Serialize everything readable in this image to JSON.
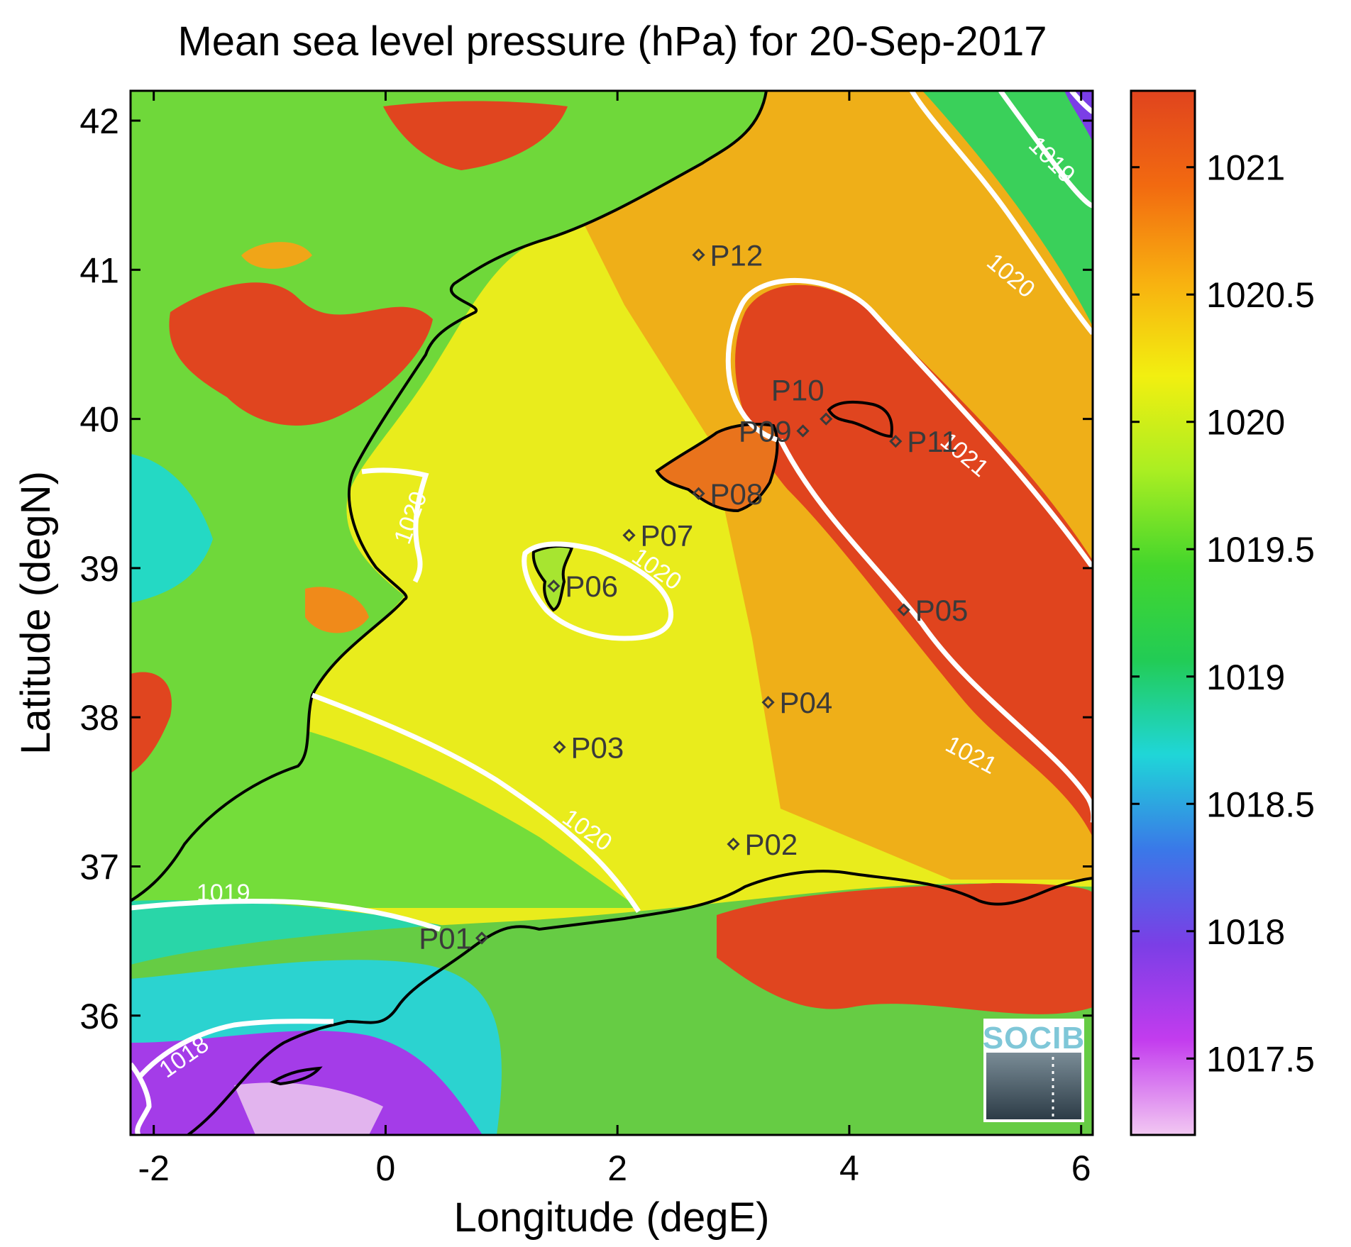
{
  "title": "Mean sea level pressure (hPa) for 20-Sep-2017",
  "x_axis": {
    "label": "Longitude (degE)",
    "range": [
      -2.2,
      6.1
    ],
    "ticks": [
      {
        "v": -2,
        "t": "-2"
      },
      {
        "v": 0,
        "t": "0"
      },
      {
        "v": 2,
        "t": "2"
      },
      {
        "v": 4,
        "t": "4"
      },
      {
        "v": 6,
        "t": "6"
      }
    ]
  },
  "y_axis": {
    "label": "Latitude (degN)",
    "range": [
      35.2,
      42.2
    ],
    "ticks": [
      {
        "v": 36,
        "t": "36"
      },
      {
        "v": 37,
        "t": "37"
      },
      {
        "v": 38,
        "t": "38"
      },
      {
        "v": 39,
        "t": "39"
      },
      {
        "v": 40,
        "t": "40"
      },
      {
        "v": 41,
        "t": "41"
      },
      {
        "v": 42,
        "t": "42"
      }
    ]
  },
  "colorbar": {
    "range": [
      1017.2,
      1021.3
    ],
    "ticks": [
      {
        "v": 1017.5,
        "t": "1017.5"
      },
      {
        "v": 1018,
        "t": "1018"
      },
      {
        "v": 1018.5,
        "t": "1018.5"
      },
      {
        "v": 1019,
        "t": "1019"
      },
      {
        "v": 1019.5,
        "t": "1019.5"
      },
      {
        "v": 1020,
        "t": "1020"
      },
      {
        "v": 1020.5,
        "t": "1020.5"
      },
      {
        "v": 1021,
        "t": "1021"
      }
    ],
    "colors": [
      "#f2c8f2",
      "#c33cee",
      "#7b3ee6",
      "#3a78e8",
      "#1fd6d8",
      "#22cc55",
      "#44d62c",
      "#aaee22",
      "#f2ef10",
      "#f8b010",
      "#f26a10",
      "#e0441e"
    ]
  },
  "stations": [
    {
      "name": "P01",
      "lon": 0.83,
      "lat": 36.52
    },
    {
      "name": "P02",
      "lon": 3.0,
      "lat": 37.15
    },
    {
      "name": "P03",
      "lon": 1.5,
      "lat": 37.8
    },
    {
      "name": "P04",
      "lon": 3.3,
      "lat": 38.1
    },
    {
      "name": "P05",
      "lon": 4.47,
      "lat": 38.72
    },
    {
      "name": "P06",
      "lon": 1.45,
      "lat": 38.88
    },
    {
      "name": "P07",
      "lon": 2.1,
      "lat": 39.22
    },
    {
      "name": "P08",
      "lon": 2.7,
      "lat": 39.5
    },
    {
      "name": "P09",
      "lon": 3.6,
      "lat": 39.92
    },
    {
      "name": "P10",
      "lon": 3.8,
      "lat": 40.0
    },
    {
      "name": "P11",
      "lon": 4.4,
      "lat": 39.85
    },
    {
      "name": "P12",
      "lon": 2.7,
      "lat": 41.1
    }
  ],
  "contour_labels": [
    {
      "text": "1019",
      "lon": 5.7,
      "lat": 41.7,
      "rot": 45
    },
    {
      "text": "1020",
      "lon": 5.35,
      "lat": 40.92,
      "rot": 40
    },
    {
      "text": "1021",
      "lon": 4.95,
      "lat": 39.72,
      "rot": 40
    },
    {
      "text": "1021",
      "lon": 5.02,
      "lat": 37.7,
      "rot": 28
    },
    {
      "text": "1020",
      "lon": 0.28,
      "lat": 39.32,
      "rot": -70
    },
    {
      "text": "1020",
      "lon": 2.3,
      "lat": 38.95,
      "rot": 35
    },
    {
      "text": "1020",
      "lon": 1.7,
      "lat": 37.2,
      "rot": 35
    },
    {
      "text": "1019",
      "lon": -1.4,
      "lat": 36.77,
      "rot": 0
    },
    {
      "text": "1018",
      "lon": -1.7,
      "lat": 35.68,
      "rot": -35
    }
  ],
  "logo": {
    "text": "SOCIB"
  }
}
